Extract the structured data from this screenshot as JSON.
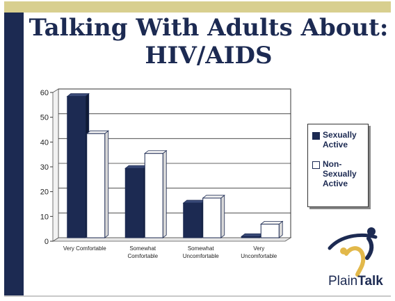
{
  "slide": {
    "title_line1": "Talking With Adults About:",
    "title_line2": "HIV/AIDS"
  },
  "logo": {
    "name_plain": "Plain",
    "name_bold": "Talk"
  },
  "colors": {
    "navy": "#1c2a52",
    "gold": "#d8cf8f",
    "white": "#ffffff"
  },
  "chart_data": {
    "type": "bar",
    "title": "",
    "xlabel": "",
    "ylabel": "",
    "ylim": [
      0,
      60
    ],
    "yticks": [
      0,
      10,
      20,
      30,
      40,
      50,
      60
    ],
    "grid": true,
    "legend_position": "right",
    "categories": [
      [
        "Very Comfortable"
      ],
      [
        "Somewhat",
        "Comfortable"
      ],
      [
        "Somewhat",
        "Uncomfortable"
      ],
      [
        "Very",
        "Uncomfortable"
      ]
    ],
    "series": [
      {
        "name": [
          "Sexually",
          "Active"
        ],
        "color": "#1c2a52",
        "values": [
          57,
          28,
          14,
          0.5
        ]
      },
      {
        "name": [
          "Non-",
          "Sexually",
          "Active"
        ],
        "color": "#ffffff",
        "values": [
          42,
          34,
          16,
          5.5
        ]
      }
    ]
  }
}
